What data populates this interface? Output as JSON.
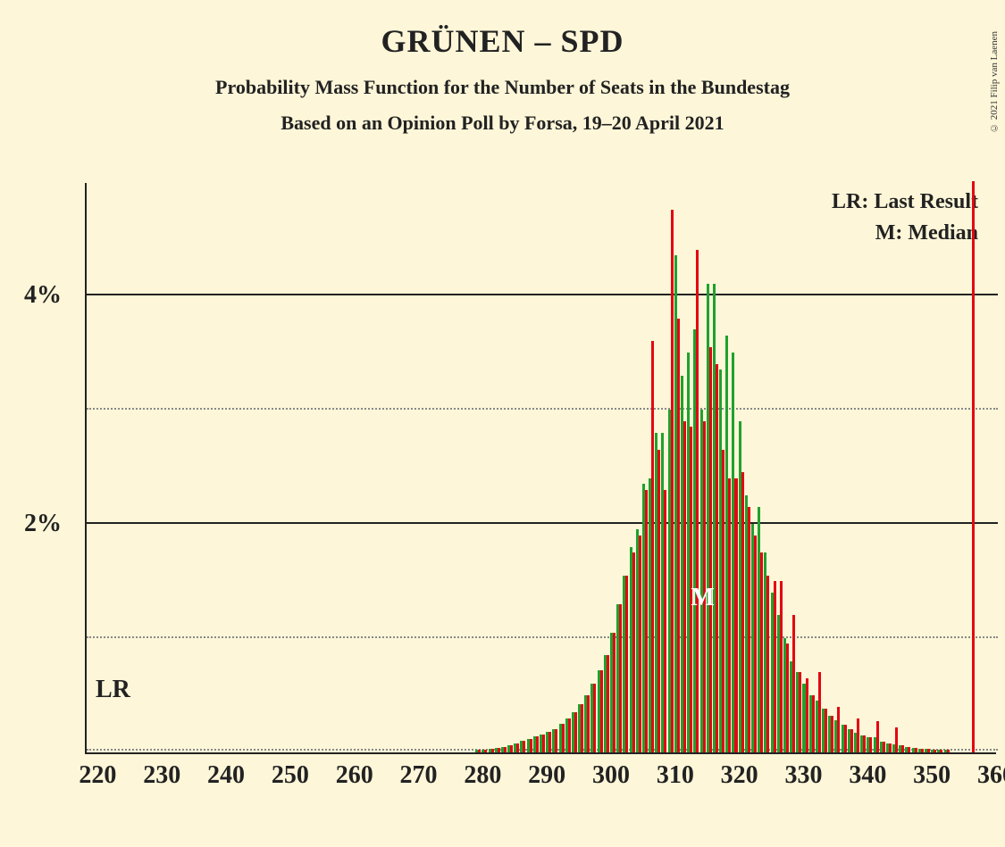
{
  "title": "GRÜNEN – SPD",
  "subtitle": "Probability Mass Function for the Number of Seats in the Bundestag",
  "subtitle2": "Based on an Opinion Poll by Forsa, 19–20 April 2021",
  "copyright": "© 2021 Filip van Laenen",
  "legend": {
    "lr": "LR: Last Result",
    "m": "M: Median"
  },
  "lr_text": "LR",
  "median_text": "M",
  "chart": {
    "x_min": 218,
    "x_max": 360,
    "y_max": 5.0,
    "y_ticks_major": [
      2,
      4
    ],
    "y_ticks_minor": [
      1,
      3
    ],
    "x_ticks": [
      220,
      230,
      240,
      250,
      260,
      270,
      280,
      290,
      300,
      310,
      320,
      330,
      340,
      350,
      360
    ],
    "lr_seat": 220,
    "lr_line_seat": 356,
    "median_seat": 314,
    "bar_colors": {
      "green": "#1fa12e",
      "red": "#e30613"
    },
    "background": "#fdf6d8",
    "grid_solid": "#222222",
    "grid_dotted": "#888888",
    "bars": [
      {
        "x": 279,
        "g": 0.02,
        "r": 0.02
      },
      {
        "x": 280,
        "g": 0.02,
        "r": 0.02
      },
      {
        "x": 281,
        "g": 0.03,
        "r": 0.03
      },
      {
        "x": 282,
        "g": 0.04,
        "r": 0.04
      },
      {
        "x": 283,
        "g": 0.05,
        "r": 0.05
      },
      {
        "x": 284,
        "g": 0.06,
        "r": 0.06
      },
      {
        "x": 285,
        "g": 0.08,
        "r": 0.08
      },
      {
        "x": 286,
        "g": 0.1,
        "r": 0.1
      },
      {
        "x": 287,
        "g": 0.12,
        "r": 0.12
      },
      {
        "x": 288,
        "g": 0.14,
        "r": 0.14
      },
      {
        "x": 289,
        "g": 0.16,
        "r": 0.16
      },
      {
        "x": 290,
        "g": 0.18,
        "r": 0.18
      },
      {
        "x": 291,
        "g": 0.2,
        "r": 0.2
      },
      {
        "x": 292,
        "g": 0.25,
        "r": 0.25
      },
      {
        "x": 293,
        "g": 0.3,
        "r": 0.3
      },
      {
        "x": 294,
        "g": 0.35,
        "r": 0.35
      },
      {
        "x": 295,
        "g": 0.42,
        "r": 0.42
      },
      {
        "x": 296,
        "g": 0.5,
        "r": 0.5
      },
      {
        "x": 297,
        "g": 0.6,
        "r": 0.6
      },
      {
        "x": 298,
        "g": 0.72,
        "r": 0.72
      },
      {
        "x": 299,
        "g": 0.85,
        "r": 0.85
      },
      {
        "x": 300,
        "g": 1.05,
        "r": 1.05
      },
      {
        "x": 301,
        "g": 1.3,
        "r": 1.3
      },
      {
        "x": 302,
        "g": 1.55,
        "r": 1.55
      },
      {
        "x": 303,
        "g": 1.8,
        "r": 1.75
      },
      {
        "x": 304,
        "g": 1.95,
        "r": 1.9
      },
      {
        "x": 305,
        "g": 2.35,
        "r": 2.3
      },
      {
        "x": 306,
        "g": 2.4,
        "r": 3.6
      },
      {
        "x": 307,
        "g": 2.8,
        "r": 2.65
      },
      {
        "x": 308,
        "g": 2.8,
        "r": 2.3
      },
      {
        "x": 309,
        "g": 3.0,
        "r": 4.75
      },
      {
        "x": 310,
        "g": 4.35,
        "r": 3.8
      },
      {
        "x": 311,
        "g": 3.3,
        "r": 2.9
      },
      {
        "x": 312,
        "g": 3.5,
        "r": 2.85
      },
      {
        "x": 313,
        "g": 3.7,
        "r": 4.4
      },
      {
        "x": 314,
        "g": 3.0,
        "r": 2.9
      },
      {
        "x": 315,
        "g": 4.1,
        "r": 3.55
      },
      {
        "x": 316,
        "g": 4.1,
        "r": 3.4
      },
      {
        "x": 317,
        "g": 3.35,
        "r": 2.65
      },
      {
        "x": 318,
        "g": 3.65,
        "r": 2.4
      },
      {
        "x": 319,
        "g": 3.5,
        "r": 2.4
      },
      {
        "x": 320,
        "g": 2.9,
        "r": 2.45
      },
      {
        "x": 321,
        "g": 2.25,
        "r": 2.15
      },
      {
        "x": 322,
        "g": 2.0,
        "r": 1.9
      },
      {
        "x": 323,
        "g": 2.15,
        "r": 1.75
      },
      {
        "x": 324,
        "g": 1.75,
        "r": 1.55
      },
      {
        "x": 325,
        "g": 1.4,
        "r": 1.5
      },
      {
        "x": 326,
        "g": 1.2,
        "r": 1.5
      },
      {
        "x": 327,
        "g": 1.0,
        "r": 0.95
      },
      {
        "x": 328,
        "g": 0.8,
        "r": 1.2
      },
      {
        "x": 329,
        "g": 0.7,
        "r": 0.7
      },
      {
        "x": 330,
        "g": 0.6,
        "r": 0.65
      },
      {
        "x": 331,
        "g": 0.5,
        "r": 0.5
      },
      {
        "x": 332,
        "g": 0.45,
        "r": 0.7
      },
      {
        "x": 333,
        "g": 0.38,
        "r": 0.38
      },
      {
        "x": 334,
        "g": 0.32,
        "r": 0.32
      },
      {
        "x": 335,
        "g": 0.28,
        "r": 0.4
      },
      {
        "x": 336,
        "g": 0.24,
        "r": 0.24
      },
      {
        "x": 337,
        "g": 0.2,
        "r": 0.2
      },
      {
        "x": 338,
        "g": 0.17,
        "r": 0.3
      },
      {
        "x": 339,
        "g": 0.15,
        "r": 0.15
      },
      {
        "x": 340,
        "g": 0.13,
        "r": 0.13
      },
      {
        "x": 341,
        "g": 0.13,
        "r": 0.27
      },
      {
        "x": 342,
        "g": 0.09,
        "r": 0.09
      },
      {
        "x": 343,
        "g": 0.08,
        "r": 0.08
      },
      {
        "x": 344,
        "g": 0.07,
        "r": 0.22
      },
      {
        "x": 345,
        "g": 0.06,
        "r": 0.06
      },
      {
        "x": 346,
        "g": 0.05,
        "r": 0.05
      },
      {
        "x": 347,
        "g": 0.04,
        "r": 0.04
      },
      {
        "x": 348,
        "g": 0.03,
        "r": 0.03
      },
      {
        "x": 349,
        "g": 0.03,
        "r": 0.03
      },
      {
        "x": 350,
        "g": 0.02,
        "r": 0.02
      },
      {
        "x": 351,
        "g": 0.02,
        "r": 0.02
      },
      {
        "x": 352,
        "g": 0.02,
        "r": 0.02
      }
    ]
  }
}
